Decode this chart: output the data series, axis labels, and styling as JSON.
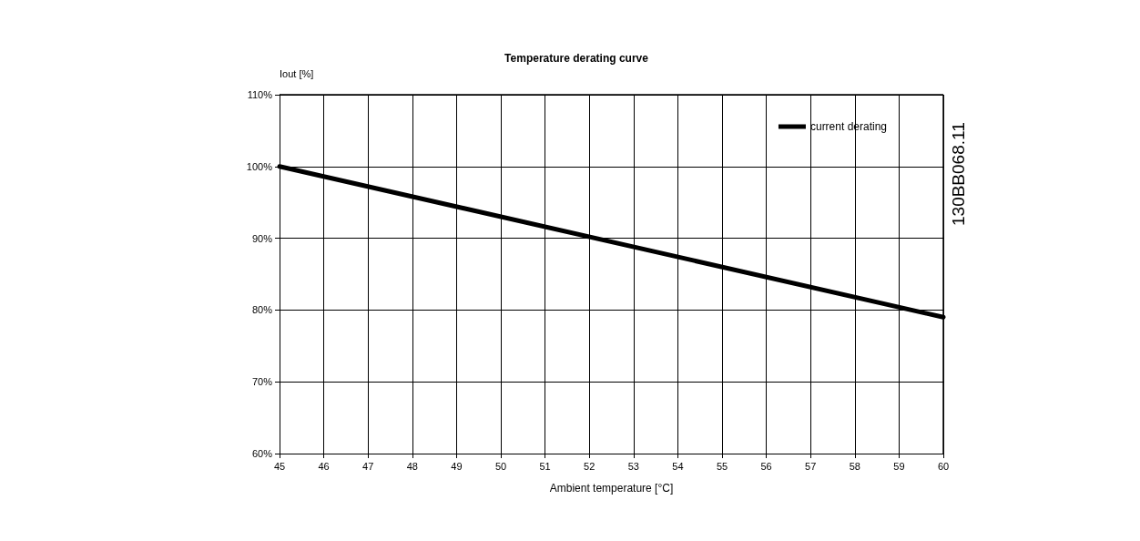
{
  "chart_data": {
    "type": "line",
    "title": "Temperature derating curve",
    "xlabel": "Ambient temperature [°C]",
    "ylabel": "Iout [%]",
    "x": [
      45,
      60
    ],
    "series": [
      {
        "name": "current derating",
        "color": "#000000",
        "values": [
          100,
          79
        ]
      }
    ],
    "xlim": [
      45,
      60
    ],
    "xticks": [
      45,
      46,
      47,
      48,
      49,
      50,
      51,
      52,
      53,
      54,
      55,
      56,
      57,
      58,
      59,
      60
    ],
    "ylim": [
      60,
      110
    ],
    "yticks": [
      {
        "value": 60,
        "label": "60%"
      },
      {
        "value": 70,
        "label": "70%"
      },
      {
        "value": 80,
        "label": "80%"
      },
      {
        "value": 90,
        "label": "90%"
      },
      {
        "value": 100,
        "label": "100%"
      },
      {
        "value": 110,
        "label": "110%"
      }
    ],
    "grid": true,
    "legend": "top right",
    "marker": "none",
    "line_style": "solid",
    "annotations": [
      "130BB068.11"
    ]
  }
}
